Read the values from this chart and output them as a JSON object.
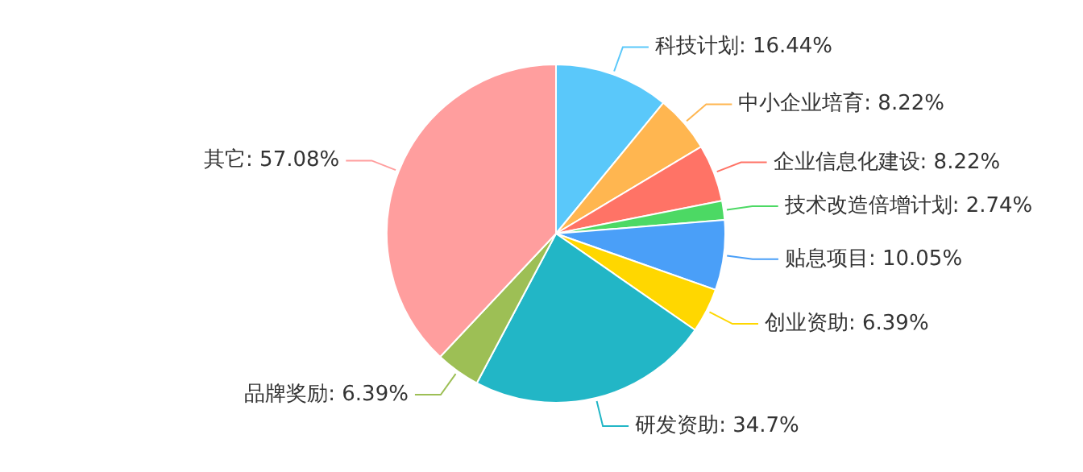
{
  "chart_data": {
    "type": "pie",
    "categories": [
      "科技计划",
      "中小企业培育",
      "企业信息化建设",
      "技术改造倍增计划",
      "贴息项目",
      "创业资助",
      "研发资助",
      "品牌奖励",
      "其它"
    ],
    "values": [
      16.44,
      8.22,
      8.22,
      2.74,
      10.05,
      6.39,
      34.7,
      6.39,
      57.08
    ],
    "value_labels": [
      "16.44%",
      "8.22%",
      "8.22%",
      "2.74%",
      "10.05%",
      "6.39%",
      "34.7%",
      "6.39%",
      "57.08%"
    ],
    "colors": [
      "#5ac8fa",
      "#ffb650",
      "#ff7366",
      "#4cd964",
      "#4a9ff8",
      "#ffd700",
      "#22b6c6",
      "#9dbf55",
      "#ff9e9e"
    ]
  }
}
